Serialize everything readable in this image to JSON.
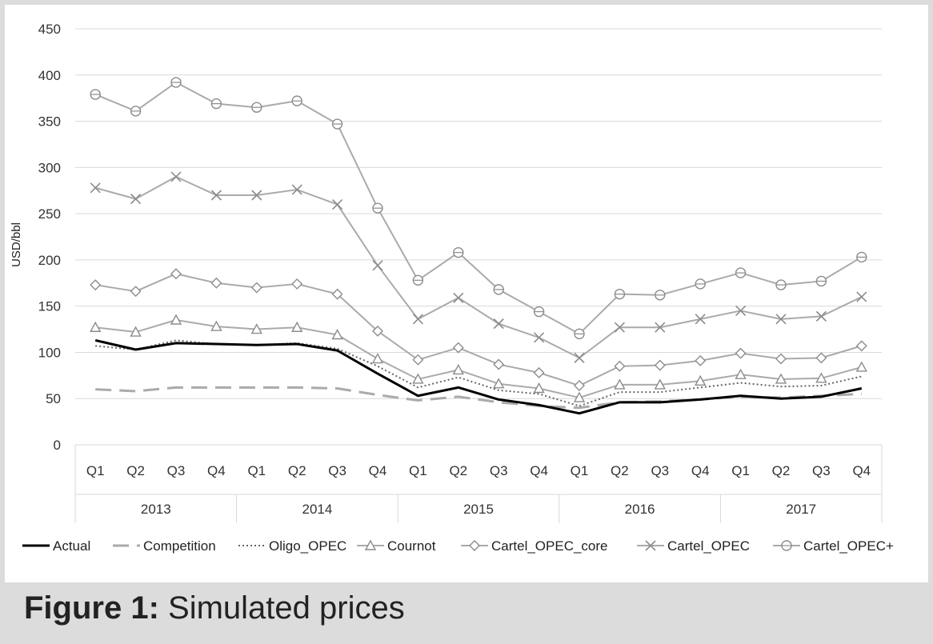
{
  "chart_data": {
    "type": "line",
    "ylabel": "USD/bbl",
    "ylim": [
      0,
      450
    ],
    "yticks": [
      0,
      50,
      100,
      150,
      200,
      250,
      300,
      350,
      400,
      450
    ],
    "grid": true,
    "legend_position": "bottom",
    "categories": [
      "Q1",
      "Q2",
      "Q3",
      "Q4",
      "Q1",
      "Q2",
      "Q3",
      "Q4",
      "Q1",
      "Q2",
      "Q3",
      "Q4",
      "Q1",
      "Q2",
      "Q3",
      "Q4",
      "Q1",
      "Q2",
      "Q3",
      "Q4"
    ],
    "year_groups": [
      "2013",
      "2014",
      "2015",
      "2016",
      "2017"
    ],
    "series": [
      {
        "name": "Actual",
        "style": "solid-thick",
        "marker": "none",
        "color": "#000000",
        "values": [
          113,
          103,
          110,
          109,
          108,
          109,
          102,
          77,
          53,
          62,
          49,
          43,
          34,
          46,
          46,
          49,
          53,
          50,
          52,
          61
        ]
      },
      {
        "name": "Competition",
        "style": "dashed",
        "marker": "none",
        "color": "#aaaaaa",
        "values": [
          60,
          58,
          62,
          62,
          62,
          62,
          61,
          54,
          48,
          52,
          46,
          42,
          40,
          46,
          47,
          49,
          52,
          51,
          53,
          55
        ]
      },
      {
        "name": "Oligo_OPEC",
        "style": "dotted",
        "marker": "none",
        "color": "#666666",
        "values": [
          107,
          103,
          113,
          109,
          108,
          110,
          104,
          85,
          62,
          73,
          59,
          55,
          42,
          57,
          57,
          62,
          67,
          63,
          64,
          74
        ]
      },
      {
        "name": "Cournot",
        "style": "solid",
        "marker": "triangle",
        "color": "#aaaaaa",
        "values": [
          127,
          122,
          135,
          128,
          125,
          127,
          119,
          93,
          71,
          81,
          66,
          61,
          51,
          65,
          65,
          69,
          76,
          71,
          72,
          84
        ]
      },
      {
        "name": "Cartel_OPEC_core",
        "style": "solid",
        "marker": "diamond",
        "color": "#aaaaaa",
        "values": [
          173,
          166,
          185,
          175,
          170,
          174,
          163,
          123,
          92,
          105,
          87,
          78,
          64,
          85,
          86,
          91,
          99,
          93,
          94,
          107
        ]
      },
      {
        "name": "Cartel_OPEC",
        "style": "solid",
        "marker": "x",
        "color": "#aaaaaa",
        "values": [
          278,
          266,
          290,
          270,
          270,
          276,
          260,
          194,
          136,
          159,
          131,
          116,
          94,
          127,
          127,
          136,
          145,
          136,
          139,
          160
        ]
      },
      {
        "name": "Cartel_OPEC+",
        "style": "solid",
        "marker": "circle",
        "color": "#aaaaaa",
        "values": [
          379,
          361,
          392,
          369,
          365,
          372,
          347,
          256,
          178,
          208,
          168,
          144,
          120,
          163,
          162,
          174,
          186,
          173,
          177,
          203
        ]
      }
    ]
  },
  "caption": {
    "label": "Figure 1:",
    "text": "Simulated prices"
  }
}
